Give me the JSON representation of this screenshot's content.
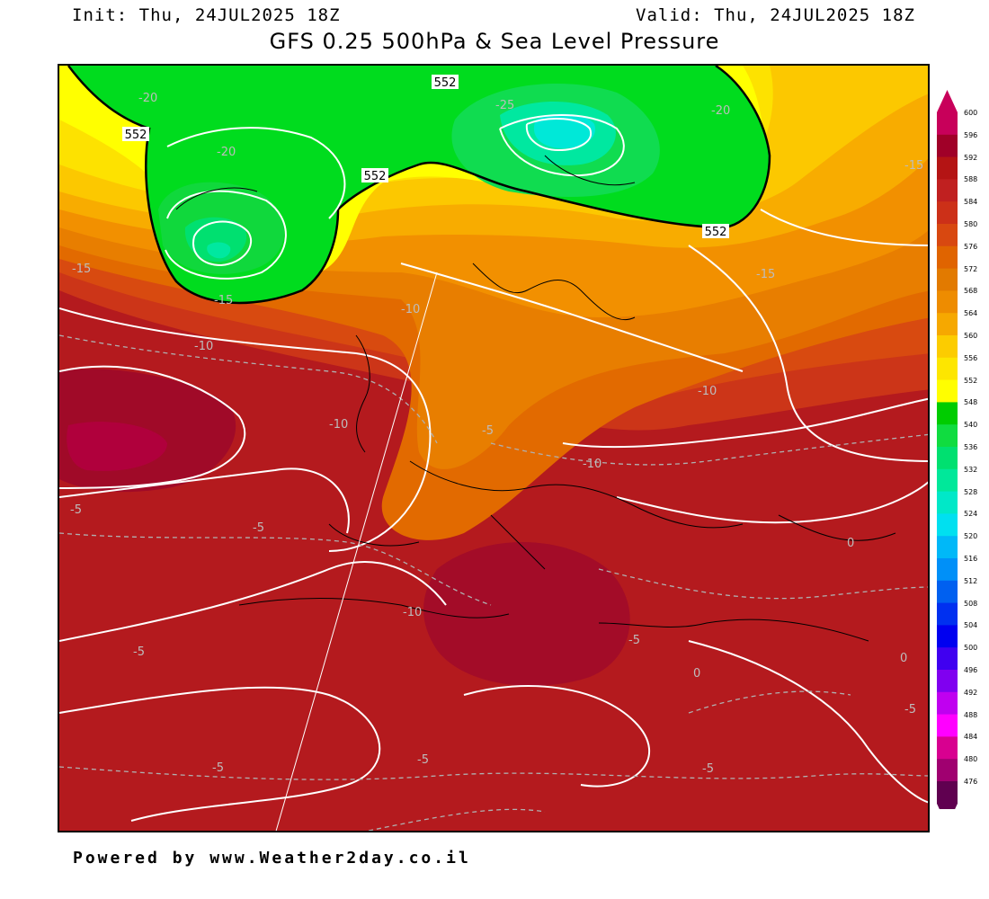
{
  "header": {
    "init": "Init: Thu, 24JUL2025 18Z",
    "valid": "Valid: Thu, 24JUL2025 18Z",
    "title": "GFS 0.25 500hPa & Sea Level Pressure"
  },
  "footer": {
    "credit": "Powered by www.Weather2day.co.il"
  },
  "map": {
    "contour_labels_552": [
      "552",
      "552",
      "552",
      "552"
    ],
    "temp_labels": [
      "-25",
      "-20",
      "-20",
      "-20",
      "-15",
      "-15",
      "-15",
      "-15",
      "-10",
      "-10",
      "-10",
      "-10",
      "-10",
      "-10",
      "-5",
      "-5",
      "-5",
      "-5",
      "-5",
      "-5",
      "-5",
      "0",
      "0",
      "0",
      "-5",
      "-5"
    ]
  },
  "legend": {
    "ticks": [
      "600",
      "596",
      "592",
      "588",
      "584",
      "580",
      "576",
      "572",
      "568",
      "564",
      "560",
      "556",
      "552",
      "548",
      "540",
      "536",
      "532",
      "528",
      "524",
      "520",
      "516",
      "512",
      "508",
      "504",
      "500",
      "496",
      "492",
      "488",
      "484",
      "480",
      "476"
    ],
    "colors": [
      "#c8005a",
      "#a00028",
      "#b41414",
      "#c02020",
      "#cc3018",
      "#d84810",
      "#e06400",
      "#e27a00",
      "#ee8c00",
      "#f6a800",
      "#fccc00",
      "#fde600",
      "#fffe00",
      "#00cc00",
      "#10dc40",
      "#00e070",
      "#00e89a",
      "#00e8c8",
      "#00e0f0",
      "#00b8f8",
      "#0090f8",
      "#0060f0",
      "#0030f0",
      "#0000f0",
      "#4000f0",
      "#8000f0",
      "#c000f0",
      "#ff00ff",
      "#d80090",
      "#a00070",
      "#600050"
    ]
  }
}
